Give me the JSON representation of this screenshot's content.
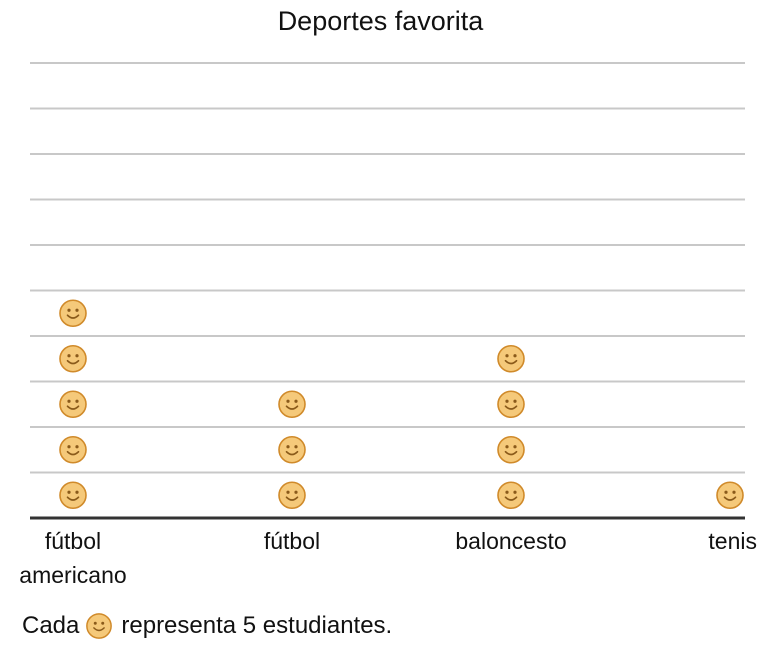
{
  "chart_data": {
    "type": "pictograph",
    "title": "Deportes favorita",
    "categories": [
      "fútbol americano",
      "fútbol",
      "baloncesto",
      "tenis"
    ],
    "category_labels": [
      [
        "fútbol",
        "americano"
      ],
      [
        "fútbol"
      ],
      [
        "baloncesto"
      ],
      [
        "tenis"
      ]
    ],
    "symbols": [
      5,
      3,
      4,
      1
    ],
    "values": [
      25,
      15,
      20,
      5
    ],
    "units_per_symbol": 5,
    "symbol_icon": "smiley-face-icon",
    "grid": true,
    "rows": 10
  },
  "key": {
    "prefix": "Cada",
    "suffix": "representa 5 estudiantes.",
    "icon": "smiley-face-icon"
  },
  "colors": {
    "face_fill": "#f5c97a",
    "face_stroke": "#d08a2a",
    "grid": "#c8c8c8",
    "axis": "#333333"
  }
}
